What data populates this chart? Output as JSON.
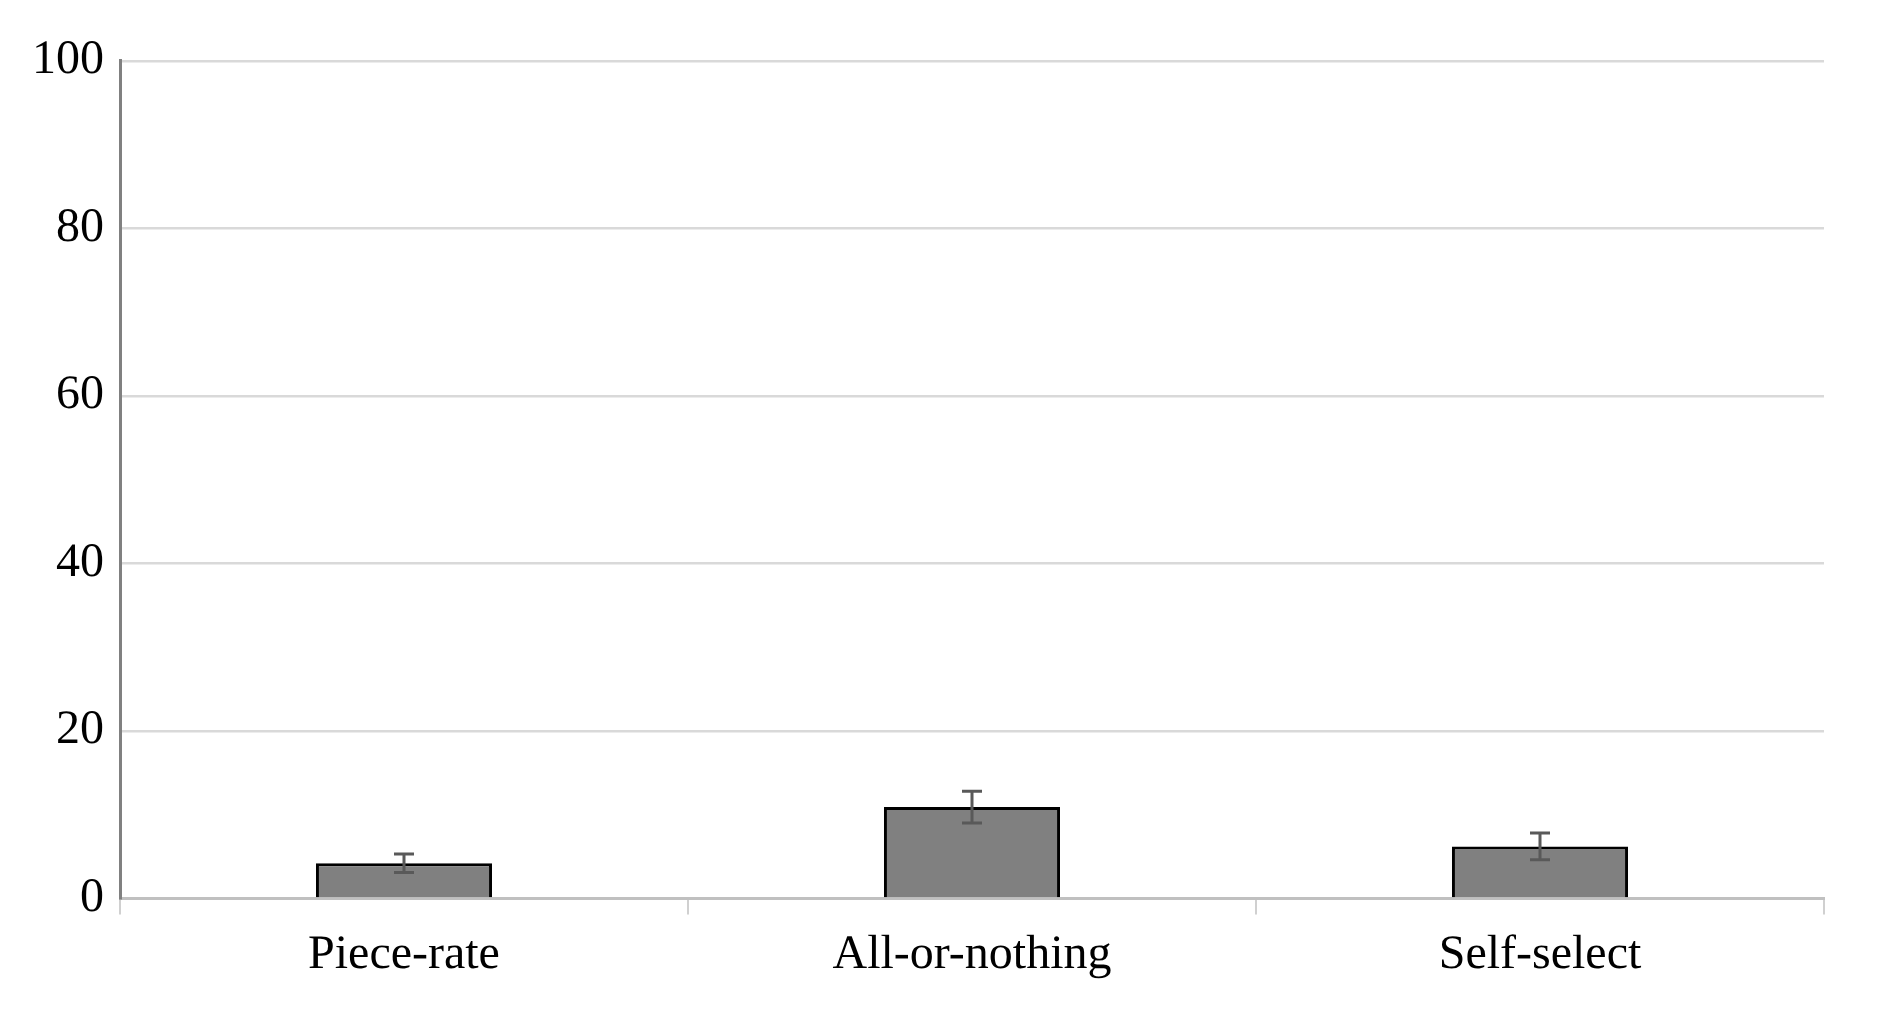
{
  "chart_data": {
    "type": "bar",
    "categories": [
      "Piece-rate",
      "All-or-nothing",
      "Self-select"
    ],
    "values": [
      4.2,
      10.9,
      6.2
    ],
    "errors": [
      1.1,
      1.9,
      1.6
    ],
    "color": "#808080",
    "ylim": [
      0,
      100
    ],
    "yticks": [
      0,
      20,
      40,
      60,
      80,
      100
    ],
    "grid": "y",
    "legend": false
  }
}
